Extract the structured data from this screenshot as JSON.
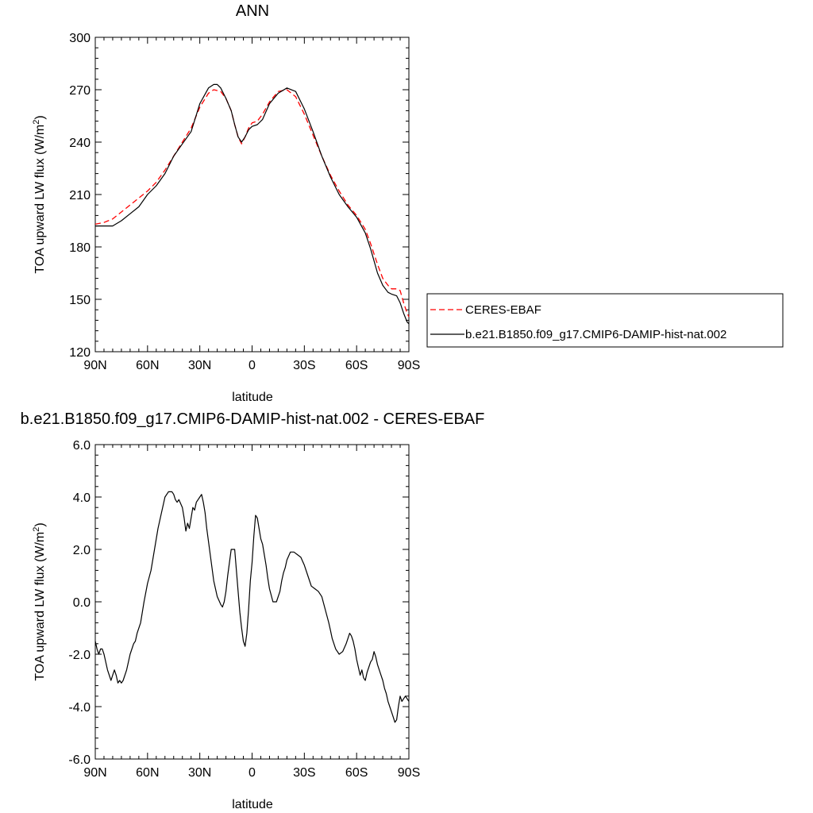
{
  "chart_data": [
    {
      "type": "line",
      "title": "ANN",
      "xlabel": "latitude",
      "ylabel": "TOA upward LW flux (W/m",
      "ylabel_sup": "2",
      "ylabel_close": ")",
      "xlim": [
        90,
        -90
      ],
      "ylim": [
        120,
        300
      ],
      "xticks": [
        {
          "value": 90,
          "label": "90N"
        },
        {
          "value": 60,
          "label": "60N"
        },
        {
          "value": 30,
          "label": "30N"
        },
        {
          "value": 0,
          "label": "0"
        },
        {
          "value": -30,
          "label": "30S"
        },
        {
          "value": -60,
          "label": "60S"
        },
        {
          "value": -90,
          "label": "90S"
        }
      ],
      "yticks": [
        {
          "value": 120,
          "label": "120"
        },
        {
          "value": 150,
          "label": "150"
        },
        {
          "value": 180,
          "label": "180"
        },
        {
          "value": 210,
          "label": "210"
        },
        {
          "value": 240,
          "label": "240"
        },
        {
          "value": 270,
          "label": "270"
        },
        {
          "value": 300,
          "label": "300"
        }
      ],
      "legend_position": "right",
      "series": [
        {
          "name": "CERES-EBAF",
          "color": "#ff0000",
          "dash": "dashed",
          "x": [
            90,
            85,
            80,
            75,
            70,
            65,
            60,
            55,
            50,
            45,
            40,
            35,
            30,
            25,
            22,
            18,
            15,
            12,
            10,
            8,
            6,
            4,
            2,
            0,
            -3,
            -6,
            -10,
            -15,
            -20,
            -25,
            -30,
            -35,
            -40,
            -45,
            -50,
            -55,
            -60,
            -65,
            -68,
            -70,
            -72,
            -75,
            -78,
            -80,
            -83,
            -85,
            -87,
            -89,
            -90
          ],
          "y": [
            193,
            194,
            196,
            200,
            204,
            208,
            212,
            217,
            224,
            232,
            240,
            248,
            260,
            268,
            270,
            269,
            265,
            258,
            250,
            243,
            239,
            243,
            248,
            251,
            252,
            256,
            263,
            269,
            270,
            266,
            256,
            244,
            232,
            221,
            212,
            204,
            198,
            190,
            182,
            176,
            170,
            162,
            158,
            156,
            156,
            155,
            148,
            142,
            140
          ]
        },
        {
          "name": "b.e21.B1850.f09_g17.CMIP6-DAMIP-hist-nat.002",
          "color": "#000000",
          "dash": "solid",
          "x": [
            90,
            85,
            80,
            75,
            70,
            65,
            60,
            55,
            50,
            45,
            40,
            35,
            30,
            25,
            22,
            20,
            18,
            15,
            12,
            10,
            8,
            6,
            4,
            2,
            0,
            -3,
            -6,
            -10,
            -15,
            -20,
            -25,
            -30,
            -35,
            -40,
            -45,
            -50,
            -55,
            -60,
            -65,
            -68,
            -70,
            -72,
            -75,
            -78,
            -80,
            -83,
            -85,
            -87,
            -89,
            -90
          ],
          "y": [
            192,
            192,
            192,
            195,
            199,
            203,
            210,
            215,
            222,
            232,
            239,
            246,
            262,
            271,
            273,
            273,
            271,
            265,
            258,
            250,
            243,
            240,
            243,
            247,
            249,
            250,
            253,
            262,
            268,
            271,
            269,
            259,
            246,
            232,
            220,
            210,
            203,
            197,
            188,
            179,
            172,
            165,
            158,
            154,
            153,
            152,
            148,
            142,
            137,
            136
          ]
        }
      ]
    },
    {
      "type": "line",
      "title": "b.e21.B1850.f09_g17.CMIP6-DAMIP-hist-nat.002 - CERES-EBAF",
      "xlabel": "latitude",
      "ylabel": "TOA upward LW flux (W/m",
      "ylabel_sup": "2",
      "ylabel_close": ")",
      "xlim": [
        90,
        -90
      ],
      "ylim": [
        -6,
        6
      ],
      "xticks": [
        {
          "value": 90,
          "label": "90N"
        },
        {
          "value": 60,
          "label": "60N"
        },
        {
          "value": 30,
          "label": "30N"
        },
        {
          "value": 0,
          "label": "0"
        },
        {
          "value": -30,
          "label": "30S"
        },
        {
          "value": -60,
          "label": "60S"
        },
        {
          "value": -90,
          "label": "90S"
        }
      ],
      "yticks": [
        {
          "value": -6,
          "label": "-6.0"
        },
        {
          "value": -4,
          "label": "-4.0"
        },
        {
          "value": -2,
          "label": "-2.0"
        },
        {
          "value": 0,
          "label": "0.0"
        },
        {
          "value": 2,
          "label": "2.0"
        },
        {
          "value": 4,
          "label": "4.0"
        },
        {
          "value": 6,
          "label": "6.0"
        }
      ],
      "series": [
        {
          "color": "#000000",
          "dash": "solid",
          "x": [
            90,
            89,
            88,
            87,
            86,
            85,
            83,
            81,
            80,
            79,
            78,
            77,
            76,
            75,
            74,
            72,
            70,
            68,
            67,
            66,
            64,
            62,
            60,
            58,
            56,
            54,
            52,
            50,
            48,
            46,
            45,
            44,
            43,
            42,
            40,
            39,
            38,
            37,
            36,
            34,
            33,
            32,
            30,
            29,
            28,
            27,
            26,
            24,
            22,
            20,
            18,
            17,
            16,
            15,
            14,
            12,
            10,
            8,
            7,
            6,
            5,
            4,
            3,
            2,
            1,
            0,
            -1,
            -2,
            -3,
            -4,
            -5,
            -6,
            -7,
            -8,
            -9,
            -10,
            -12,
            -14,
            -16,
            -17,
            -18,
            -19,
            -20,
            -22,
            -24,
            -26,
            -28,
            -30,
            -32,
            -34,
            -36,
            -38,
            -40,
            -42,
            -44,
            -45,
            -46,
            -48,
            -50,
            -52,
            -54,
            -55,
            -56,
            -57,
            -58,
            -59,
            -60,
            -61,
            -62,
            -63,
            -64,
            -65,
            -66,
            -67,
            -68,
            -69,
            -70,
            -71,
            -72,
            -73,
            -74,
            -75,
            -76,
            -77,
            -78,
            -79,
            -80,
            -81,
            -82,
            -83,
            -84,
            -85,
            -86,
            -87,
            -88,
            -89,
            -90
          ],
          "y": [
            -1.5,
            -1.8,
            -2.0,
            -1.8,
            -1.8,
            -2.0,
            -2.6,
            -3.0,
            -2.8,
            -2.6,
            -2.8,
            -3.1,
            -3.0,
            -3.1,
            -3.0,
            -2.6,
            -2.0,
            -1.6,
            -1.5,
            -1.2,
            -0.8,
            0.0,
            0.7,
            1.2,
            2.0,
            2.8,
            3.4,
            4.0,
            4.2,
            4.2,
            4.1,
            3.9,
            3.8,
            3.9,
            3.6,
            3.2,
            2.7,
            3.0,
            2.8,
            3.6,
            3.5,
            3.8,
            4.0,
            4.1,
            3.8,
            3.4,
            2.8,
            1.8,
            0.8,
            0.2,
            -0.1,
            -0.2,
            0.0,
            0.4,
            1.0,
            2.0,
            2.0,
            0.4,
            -0.4,
            -1.0,
            -1.5,
            -1.7,
            -1.2,
            -0.3,
            0.8,
            1.5,
            2.5,
            3.3,
            3.2,
            2.8,
            2.4,
            2.2,
            1.8,
            1.4,
            0.9,
            0.5,
            0.0,
            0.0,
            0.4,
            0.8,
            1.1,
            1.3,
            1.6,
            1.9,
            1.9,
            1.8,
            1.7,
            1.4,
            1.0,
            0.6,
            0.5,
            0.4,
            0.2,
            -0.3,
            -0.8,
            -1.1,
            -1.4,
            -1.8,
            -2.0,
            -1.9,
            -1.6,
            -1.4,
            -1.2,
            -1.3,
            -1.5,
            -1.8,
            -2.2,
            -2.5,
            -2.8,
            -2.6,
            -2.9,
            -3.0,
            -2.7,
            -2.5,
            -2.3,
            -2.2,
            -1.9,
            -2.1,
            -2.4,
            -2.6,
            -2.8,
            -3.0,
            -3.3,
            -3.5,
            -3.8,
            -4.0,
            -4.2,
            -4.4,
            -4.6,
            -4.5,
            -4.0,
            -3.6,
            -3.8,
            -3.7,
            -3.6,
            -3.7,
            -3.8
          ]
        }
      ]
    }
  ]
}
